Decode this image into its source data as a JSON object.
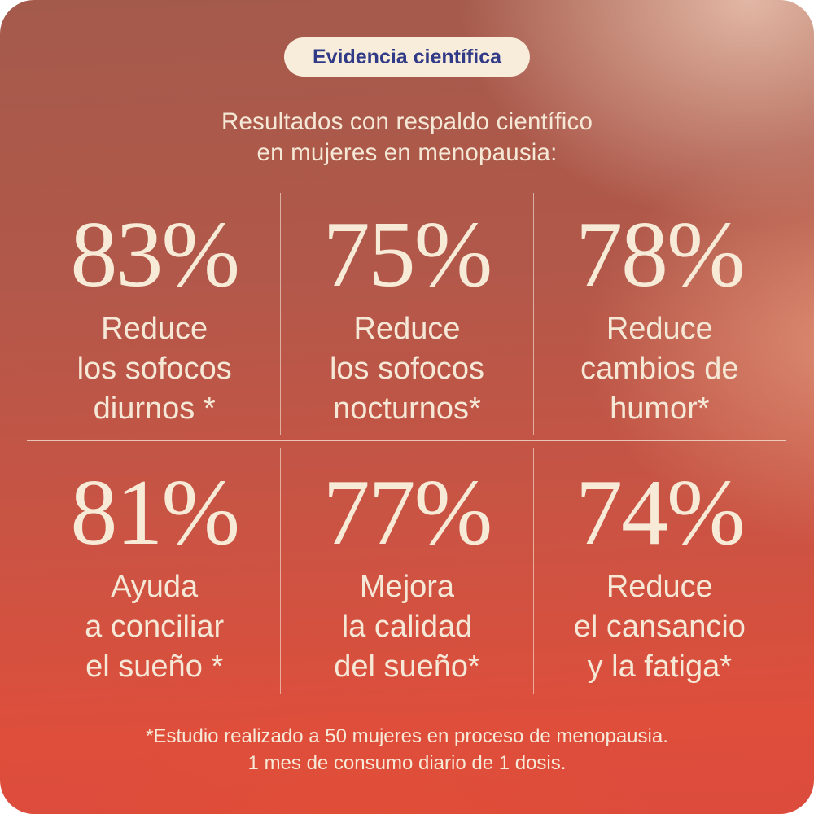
{
  "badge": {
    "label": "Evidencia científica"
  },
  "heading": {
    "line1": "Resultados con respaldo científico",
    "line2": "en mujeres en menopausia:"
  },
  "stats": [
    {
      "value": "83%",
      "lines": [
        "Reduce",
        "los sofocos",
        "diurnos *"
      ]
    },
    {
      "value": "75%",
      "lines": [
        "Reduce",
        "los sofocos",
        "nocturnos*"
      ]
    },
    {
      "value": "78%",
      "lines": [
        "Reduce",
        "cambios de",
        "humor*"
      ]
    },
    {
      "value": "81%",
      "lines": [
        "Ayuda",
        "a conciliar",
        "el sueño *"
      ]
    },
    {
      "value": "77%",
      "lines": [
        "Mejora",
        "la calidad",
        "del sueño*"
      ]
    },
    {
      "value": "74%",
      "lines": [
        "Reduce",
        "el cansancio",
        "y la fatiga*"
      ]
    }
  ],
  "footnote": {
    "line1": "*Estudio realizado a 50 mujeres en proceso de menopausia.",
    "line2": "1 mes de consumo diario de 1 dosis."
  },
  "colors": {
    "badge_bg": "#F8ECDB",
    "badge_text": "#313A86",
    "text_cream": "#F5E8D6",
    "divider": "rgba(247,235,219,0.7)",
    "bg_top_left": "#A45A4B",
    "bg_top_right": "#E2B7A4",
    "bg_mid": "#CC5343",
    "bg_bottom": "#DC4B3C"
  },
  "chart_data": {
    "type": "table",
    "title": "Resultados con respaldo científico en mujeres en menopausia",
    "categories": [
      "Reduce los sofocos diurnos",
      "Reduce los sofocos nocturnos",
      "Reduce cambios de humor",
      "Ayuda a conciliar el sueño",
      "Mejora la calidad del sueño",
      "Reduce el cansancio y la fatiga"
    ],
    "values": [
      83,
      75,
      78,
      81,
      77,
      74
    ],
    "unit": "%",
    "note": "*Estudio realizado a 50 mujeres en proceso de menopausia. 1 mes de consumo diario de 1 dosis."
  }
}
